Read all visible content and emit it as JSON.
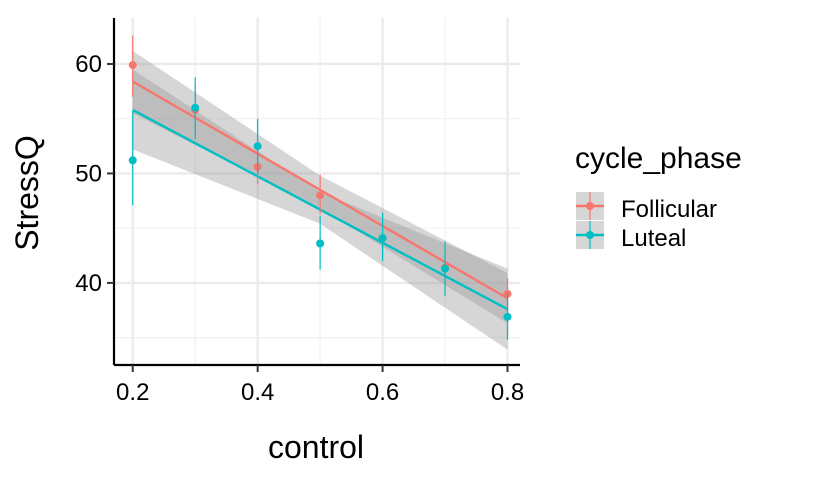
{
  "chart_data": {
    "type": "scatter",
    "xlabel": "control",
    "ylabel": "StressQ",
    "xlim": [
      0.17,
      0.82
    ],
    "ylim": [
      32.5,
      64.2
    ],
    "x_ticks": [
      0.2,
      0.4,
      0.6,
      0.8
    ],
    "y_ticks": [
      40,
      50,
      60
    ],
    "grid": true,
    "legend": {
      "title": "cycle_phase",
      "position": "right"
    },
    "series": [
      {
        "name": "Follicular",
        "color": "#F8766D",
        "points": [
          {
            "x": 0.2,
            "y": 59.9,
            "err": [
              57.0,
              62.6
            ]
          },
          {
            "x": 0.3,
            "y": 55.8,
            "err": [
              53.3,
              58.2
            ]
          },
          {
            "x": 0.4,
            "y": 50.6,
            "err": [
              49.0,
              52.3
            ]
          },
          {
            "x": 0.5,
            "y": 48.0,
            "err": [
              46.3,
              49.9
            ]
          },
          {
            "x": 0.6,
            "y": 44.1,
            "err": [
              42.6,
              45.6
            ]
          },
          {
            "x": 0.7,
            "y": 41.4,
            "err": [
              39.8,
              43.0
            ]
          },
          {
            "x": 0.8,
            "y": 39.0,
            "err": [
              37.5,
              40.4
            ]
          }
        ],
        "fit": {
          "x": [
            0.2,
            0.8
          ],
          "y": [
            58.4,
            38.6
          ]
        },
        "ci": {
          "x": [
            0.2,
            0.5,
            0.8
          ],
          "lower": [
            55.5,
            46.8,
            36.3
          ],
          "upper": [
            61.2,
            49.8,
            40.9
          ]
        }
      },
      {
        "name": "Luteal",
        "color": "#00BFC4",
        "points": [
          {
            "x": 0.2,
            "y": 51.2,
            "err": [
              47.1,
              55.7
            ]
          },
          {
            "x": 0.3,
            "y": 56.0,
            "err": [
              53.1,
              58.8
            ]
          },
          {
            "x": 0.4,
            "y": 52.5,
            "err": [
              49.9,
              55.0
            ]
          },
          {
            "x": 0.5,
            "y": 43.6,
            "err": [
              41.2,
              46.1
            ]
          },
          {
            "x": 0.6,
            "y": 44.1,
            "err": [
              42.0,
              46.4
            ]
          },
          {
            "x": 0.7,
            "y": 41.3,
            "err": [
              38.8,
              43.8
            ]
          },
          {
            "x": 0.8,
            "y": 36.9,
            "err": [
              34.8,
              39.2
            ]
          }
        ],
        "fit": {
          "x": [
            0.2,
            0.8
          ],
          "y": [
            55.8,
            37.6
          ]
        },
        "ci": {
          "x": [
            0.2,
            0.5,
            0.8
          ],
          "lower": [
            52.2,
            45.4,
            33.9
          ],
          "upper": [
            59.5,
            48.3,
            41.3
          ]
        }
      }
    ]
  }
}
